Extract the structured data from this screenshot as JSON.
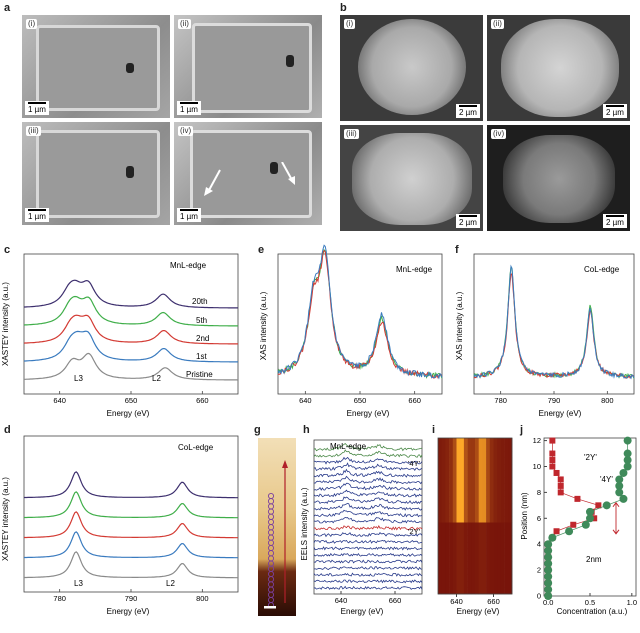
{
  "panel_letters": [
    "a",
    "b",
    "c",
    "d",
    "e",
    "f",
    "g",
    "h",
    "i",
    "j"
  ],
  "panel_a": {
    "subpanels": [
      "(i)",
      "(ii)",
      "(iii)",
      "(iv)"
    ],
    "scale": "1 µm"
  },
  "panel_b": {
    "subpanels": [
      "(i)",
      "(ii)",
      "(iii)",
      "(iv)"
    ],
    "scale": "2 µm"
  },
  "chart_data": [
    {
      "id": "c",
      "type": "line",
      "title": "",
      "annotation": "MnL-edge",
      "xlabel": "Energy (eV)",
      "ylabel": "XASTEY intensity (a.u.)",
      "xlim": [
        635,
        665
      ],
      "xticks": [
        640,
        650,
        660
      ],
      "series_labels": [
        "20th",
        "5th",
        "2nd",
        "1st",
        "Pristine"
      ],
      "peak_labels": [
        "L3",
        "L2"
      ],
      "series": [
        {
          "name": "20th",
          "color": "#3d2f6e",
          "offset": 4,
          "peaks": [
            [
              641.3,
              0.55
            ],
            [
              642.2,
              0.62
            ],
            [
              644.0,
              0.95
            ],
            [
              654.5,
              0.62
            ]
          ]
        },
        {
          "name": "5th",
          "color": "#3fae49",
          "offset": 3,
          "peaks": [
            [
              641.4,
              0.6
            ],
            [
              642.3,
              0.65
            ],
            [
              644.1,
              1.0
            ],
            [
              654.5,
              0.6
            ]
          ]
        },
        {
          "name": "2nd",
          "color": "#d33a33",
          "offset": 2,
          "peaks": [
            [
              641.5,
              0.55
            ],
            [
              642.4,
              0.62
            ],
            [
              644.0,
              0.95
            ],
            [
              654.6,
              0.6
            ]
          ]
        },
        {
          "name": "1st",
          "color": "#3a7bbf",
          "offset": 1,
          "peaks": [
            [
              641.5,
              0.6
            ],
            [
              642.5,
              0.65
            ],
            [
              644.0,
              1.0
            ],
            [
              654.6,
              0.6
            ]
          ]
        },
        {
          "name": "Pristine",
          "color": "#8a8a8a",
          "offset": 0,
          "peaks": [
            [
              641.8,
              0.75
            ],
            [
              644.1,
              1.05
            ],
            [
              654.8,
              0.55
            ]
          ]
        }
      ]
    },
    {
      "id": "d",
      "type": "line",
      "title": "",
      "annotation": "CoL-edge",
      "xlabel": "Energy (eV)",
      "ylabel": "XASTEY intensity (a.u.)",
      "xlim": [
        775,
        805
      ],
      "xticks": [
        780,
        790,
        800
      ],
      "peak_labels": [
        "L3",
        "L2"
      ],
      "series": [
        {
          "color": "#3d2f6e",
          "offset": 4,
          "peaks": [
            [
              782.3,
              1.0
            ],
            [
              797.2,
              0.6
            ]
          ]
        },
        {
          "color": "#3fae49",
          "offset": 3,
          "peaks": [
            [
              782.3,
              1.0
            ],
            [
              797.2,
              0.55
            ]
          ]
        },
        {
          "color": "#d33a33",
          "offset": 2,
          "peaks": [
            [
              782.3,
              1.0
            ],
            [
              797.2,
              0.55
            ]
          ]
        },
        {
          "color": "#3a7bbf",
          "offset": 1,
          "peaks": [
            [
              782.3,
              1.0
            ],
            [
              797.2,
              0.55
            ]
          ]
        },
        {
          "color": "#8a8a8a",
          "offset": 0,
          "peaks": [
            [
              782.3,
              1.0
            ],
            [
              797.2,
              0.55
            ]
          ]
        }
      ]
    },
    {
      "id": "e",
      "type": "line",
      "title": "",
      "annotation": "MnL-edge",
      "xlabel": "Energy (eV)",
      "ylabel": "XAS intensity (a.u.)",
      "xlim": [
        635,
        665
      ],
      "xticks": [
        640,
        650,
        660
      ],
      "series": [
        {
          "color": "#3fae49",
          "peaks": [
            [
              641.5,
              0.55
            ],
            [
              643.6,
              1.0
            ],
            [
              654.0,
              0.52
            ]
          ]
        },
        {
          "color": "#d33a33",
          "peaks": [
            [
              641.5,
              0.55
            ],
            [
              643.6,
              0.98
            ],
            [
              654.0,
              0.48
            ]
          ]
        },
        {
          "color": "#3a7bbf",
          "peaks": [
            [
              641.5,
              0.6
            ],
            [
              643.6,
              1.0
            ],
            [
              654.0,
              0.56
            ]
          ]
        }
      ]
    },
    {
      "id": "f",
      "type": "line",
      "title": "",
      "annotation": "CoL-edge",
      "xlabel": "Energy (eV)",
      "ylabel": "XAS intensity (a.u.)",
      "xlim": [
        775,
        805
      ],
      "xticks": [
        780,
        790,
        800
      ],
      "series": [
        {
          "color": "#3fae49",
          "peaks": [
            [
              782.0,
              1.0
            ],
            [
              796.8,
              0.65
            ]
          ]
        },
        {
          "color": "#d33a33",
          "peaks": [
            [
              782.0,
              0.95
            ],
            [
              796.8,
              0.6
            ]
          ]
        },
        {
          "color": "#3a7bbf",
          "peaks": [
            [
              782.0,
              1.0
            ],
            [
              796.8,
              0.62
            ]
          ]
        }
      ]
    },
    {
      "id": "h",
      "type": "line",
      "title": "",
      "annotation": "MnL-edge",
      "xlabel": "Energy (eV)",
      "ylabel": "EELS intensity (a.u.)",
      "xlim": [
        630,
        670
      ],
      "xticks": [
        640,
        660
      ],
      "series_labels": [
        "'4Y'",
        "'2Y'"
      ]
    },
    {
      "id": "i",
      "type": "heatmap",
      "title": "",
      "xlabel": "Energy (eV)",
      "xlim": [
        630,
        670
      ],
      "xticks": [
        640,
        660
      ]
    },
    {
      "id": "j",
      "type": "scatter",
      "title": "",
      "xlabel": "Concentration (a.u.)",
      "ylabel": "Position (nm)",
      "xlim": [
        -0.05,
        1.05
      ],
      "ylim": [
        0,
        12.2
      ],
      "xticks": [
        0.0,
        0.5,
        1.0
      ],
      "yticks": [
        0,
        2,
        4,
        6,
        8,
        10,
        12
      ],
      "annotations": [
        "'2Y'",
        "'4Y'",
        "2nm"
      ],
      "series": [
        {
          "name": "'2Y'",
          "color": "#c0272d",
          "marker": "square",
          "x": [
            0.0,
            0.0,
            0.0,
            0.0,
            0.0,
            0.0,
            0.0,
            0.0,
            0.0,
            0.05,
            0.1,
            0.3,
            0.55,
            0.52,
            0.6,
            0.35,
            0.15,
            0.15,
            0.15,
            0.1,
            0.05,
            0.05,
            0.05,
            0.05
          ],
          "y": [
            0,
            0.5,
            1,
            1.5,
            2,
            2.5,
            3,
            3.5,
            4,
            4.5,
            5,
            5.5,
            6,
            6.5,
            7,
            7.5,
            8,
            8.5,
            9,
            9.5,
            10,
            10.5,
            11,
            12
          ]
        },
        {
          "name": "'4Y'",
          "color": "#3f8a5a",
          "marker": "circle",
          "x": [
            0.0,
            0.0,
            0.0,
            0.0,
            0.0,
            0.0,
            0.0,
            0.0,
            0.0,
            0.05,
            0.25,
            0.45,
            0.5,
            0.5,
            0.7,
            0.9,
            0.85,
            0.85,
            0.85,
            0.9,
            0.95,
            0.95,
            0.95,
            0.95
          ],
          "y": [
            0,
            0.5,
            1,
            1.5,
            2,
            2.5,
            3,
            3.5,
            4,
            4.5,
            5,
            5.5,
            6,
            6.5,
            7,
            7.5,
            8,
            8.5,
            9,
            9.5,
            10,
            10.5,
            11,
            12
          ]
        }
      ]
    }
  ]
}
